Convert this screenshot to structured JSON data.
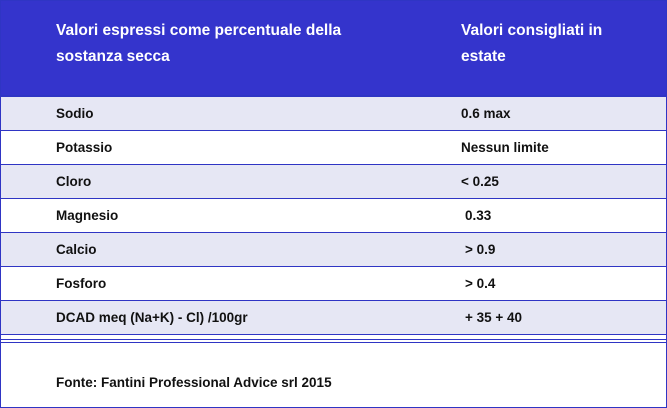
{
  "header": {
    "col1": "Valori espressi come percentuale della sostanza secca",
    "col2": "Valori consigliati in estate"
  },
  "rows": [
    {
      "name": "Sodio",
      "value": "0.6 max"
    },
    {
      "name": "Potassio",
      "value": "Nessun limite"
    },
    {
      "name": "Cloro",
      "value": "< 0.25"
    },
    {
      "name": "Magnesio",
      "value": "0.33"
    },
    {
      "name": "Calcio",
      "value": "> 0.9"
    },
    {
      "name": "Fosforo",
      "value": "> 0.4"
    },
    {
      "name": "DCAD meq (Na+K) - Cl) /100gr",
      "value": "+ 35 + 40"
    }
  ],
  "footer": "Fonte: Fantini Professional Advice srl 2015",
  "colors": {
    "header_bg": "#3434cc",
    "row_shaded": "#e6e7f4",
    "border": "#2f35c4"
  }
}
